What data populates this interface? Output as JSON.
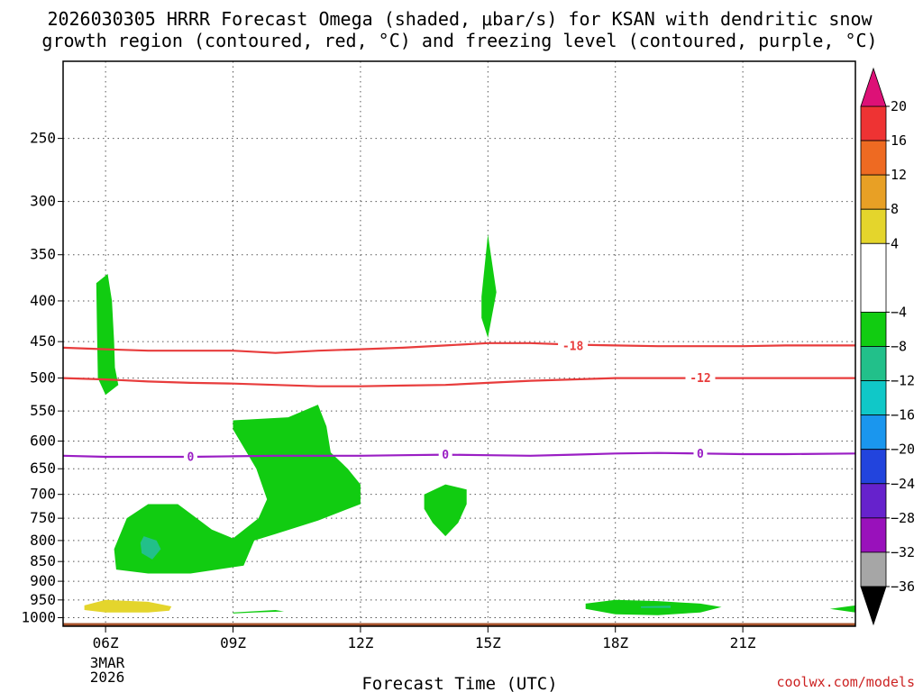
{
  "chart_data": {
    "type": "time-height contour",
    "title_line1": "2026030305 HRRR Forecast Omega (shaded, μbar/s) for KSAN with dendritic snow",
    "title_line2": "growth region (contoured, red, °C) and freezing level (contoured, purple, °C)",
    "xlabel": "Forecast Time (UTC)",
    "date_label": [
      "3MAR",
      "2026"
    ],
    "credit": "coolwx.com/models",
    "x_hours_range": [
      5.0,
      23.65
    ],
    "x_ticks": [
      {
        "hour": 6,
        "label": "06Z"
      },
      {
        "hour": 9,
        "label": "09Z"
      },
      {
        "hour": 12,
        "label": "12Z"
      },
      {
        "hour": 15,
        "label": "15Z"
      },
      {
        "hour": 18,
        "label": "18Z"
      },
      {
        "hour": 21,
        "label": "21Z"
      }
    ],
    "y_pressure_range_hPa": [
      200,
      1025
    ],
    "y_ticks": [
      "250",
      "300",
      "350",
      "400",
      "450",
      "500",
      "550",
      "600",
      "650",
      "700",
      "750",
      "800",
      "850",
      "900",
      "950",
      "1000"
    ],
    "y_ticks_values": [
      250,
      300,
      350,
      400,
      450,
      500,
      550,
      600,
      650,
      700,
      750,
      800,
      850,
      900,
      950,
      1000
    ],
    "gridlines": "dotted",
    "colorbar": {
      "labels": [
        "20",
        "16",
        "12",
        "8",
        "4",
        "−4",
        "−8",
        "−12",
        "−16",
        "−20",
        "−24",
        "−28",
        "−32",
        "−36"
      ],
      "label_values": [
        20,
        16,
        12,
        8,
        4,
        -4,
        -8,
        -12,
        -16,
        -20,
        -24,
        -28,
        -32,
        -36
      ],
      "bins": [
        {
          "range": [
            16,
            20
          ],
          "color": "#ee3333"
        },
        {
          "range": [
            12,
            16
          ],
          "color": "#ee6a22"
        },
        {
          "range": [
            8,
            12
          ],
          "color": "#e8a025"
        },
        {
          "range": [
            4,
            8
          ],
          "color": "#e4d52c"
        },
        {
          "range": [
            -4,
            4
          ],
          "color": "#ffffff"
        },
        {
          "range": [
            -8,
            -4
          ],
          "color": "#11cc11"
        },
        {
          "range": [
            -12,
            -8
          ],
          "color": "#22c08a"
        },
        {
          "range": [
            -16,
            -12
          ],
          "color": "#10c8c8"
        },
        {
          "range": [
            -20,
            -16
          ],
          "color": "#1a96ee"
        },
        {
          "range": [
            -24,
            -20
          ],
          "color": "#2244dd"
        },
        {
          "range": [
            -28,
            -24
          ],
          "color": "#6622cc"
        },
        {
          "range": [
            -32,
            -28
          ],
          "color": "#9911bb"
        },
        {
          "range": [
            -36,
            -32
          ],
          "color": "#a6a6a6"
        }
      ],
      "over_color": "#dd1177",
      "under_color": "#000000"
    },
    "contours": [
      {
        "value": "-18",
        "color": "#e83c3c",
        "label_points": [
          [
            17.0,
            456
          ]
        ],
        "points": [
          [
            5.0,
            458
          ],
          [
            6.0,
            460
          ],
          [
            7.0,
            462
          ],
          [
            8.0,
            462
          ],
          [
            9.0,
            462
          ],
          [
            10.0,
            465
          ],
          [
            11.0,
            462
          ],
          [
            12.0,
            460
          ],
          [
            13.0,
            458
          ],
          [
            14.0,
            455
          ],
          [
            15.0,
            452
          ],
          [
            16.0,
            452
          ],
          [
            17.0,
            454
          ],
          [
            18.0,
            455
          ],
          [
            19.0,
            456
          ],
          [
            20.0,
            456
          ],
          [
            21.0,
            456
          ],
          [
            22.0,
            455
          ],
          [
            23.65,
            455
          ]
        ]
      },
      {
        "value": "-12",
        "color": "#e83c3c",
        "label_points": [
          [
            20.0,
            500
          ]
        ],
        "points": [
          [
            5.0,
            500
          ],
          [
            6.0,
            502
          ],
          [
            7.0,
            505
          ],
          [
            8.0,
            507
          ],
          [
            9.0,
            508
          ],
          [
            10.0,
            510
          ],
          [
            11.0,
            512
          ],
          [
            12.0,
            512
          ],
          [
            13.0,
            511
          ],
          [
            14.0,
            510
          ],
          [
            15.0,
            507
          ],
          [
            16.0,
            504
          ],
          [
            17.0,
            502
          ],
          [
            18.0,
            500
          ],
          [
            19.0,
            500
          ],
          [
            20.0,
            500
          ],
          [
            21.0,
            500
          ],
          [
            22.0,
            500
          ],
          [
            23.65,
            500
          ]
        ]
      },
      {
        "value": "0",
        "color": "#9a1ec4",
        "label_points": [
          [
            8.0,
            628
          ],
          [
            14.0,
            624
          ],
          [
            20.0,
            622
          ]
        ],
        "points": [
          [
            5.0,
            626
          ],
          [
            6.0,
            628
          ],
          [
            7.0,
            628
          ],
          [
            8.0,
            628
          ],
          [
            9.0,
            627
          ],
          [
            10.0,
            626
          ],
          [
            11.0,
            626
          ],
          [
            12.0,
            626
          ],
          [
            13.0,
            625
          ],
          [
            14.0,
            624
          ],
          [
            15.0,
            625
          ],
          [
            16.0,
            626
          ],
          [
            17.0,
            624
          ],
          [
            18.0,
            622
          ],
          [
            19.0,
            621
          ],
          [
            20.0,
            622
          ],
          [
            21.0,
            623
          ],
          [
            22.0,
            623
          ],
          [
            23.65,
            622
          ]
        ]
      }
    ],
    "shaded_regions": [
      {
        "range": [
          -8,
          -4
        ],
        "color": "#11cc11",
        "points": [
          [
            5.78,
            380
          ],
          [
            6.05,
            370
          ],
          [
            6.15,
            400
          ],
          [
            6.2,
            450
          ],
          [
            6.22,
            485
          ],
          [
            6.3,
            510
          ],
          [
            6.0,
            525
          ],
          [
            5.82,
            500
          ],
          [
            5.8,
            440
          ]
        ]
      },
      {
        "range": [
          -8,
          -4
        ],
        "color": "#11cc11",
        "points": [
          [
            14.85,
            395
          ],
          [
            15.0,
            330
          ],
          [
            15.2,
            390
          ],
          [
            15.0,
            445
          ],
          [
            14.85,
            420
          ]
        ]
      },
      {
        "range": [
          -8,
          -4
        ],
        "color": "#11cc11",
        "points": [
          [
            9.0,
            565
          ],
          [
            10.3,
            560
          ],
          [
            11.0,
            540
          ],
          [
            11.2,
            575
          ],
          [
            11.3,
            620
          ],
          [
            11.7,
            650
          ],
          [
            12.0,
            680
          ],
          [
            12.0,
            720
          ],
          [
            11.0,
            755
          ],
          [
            10.0,
            785
          ],
          [
            9.5,
            800
          ],
          [
            9.25,
            860
          ],
          [
            8.0,
            880
          ],
          [
            7.0,
            880
          ],
          [
            6.25,
            870
          ],
          [
            6.2,
            820
          ],
          [
            6.5,
            750
          ],
          [
            7.0,
            720
          ],
          [
            7.7,
            720
          ],
          [
            8.0,
            740
          ],
          [
            8.5,
            775
          ],
          [
            9.0,
            795
          ],
          [
            9.6,
            750
          ],
          [
            9.8,
            710
          ],
          [
            9.55,
            650
          ],
          [
            9.0,
            580
          ]
        ]
      },
      {
        "range": [
          -12,
          -8
        ],
        "color": "#22c08a",
        "points": [
          [
            6.9,
            790
          ],
          [
            7.2,
            800
          ],
          [
            7.3,
            820
          ],
          [
            7.1,
            845
          ],
          [
            6.85,
            830
          ],
          [
            6.82,
            805
          ]
        ]
      },
      {
        "range": [
          -8,
          -4
        ],
        "color": "#11cc11",
        "points": [
          [
            13.5,
            700
          ],
          [
            14.0,
            680
          ],
          [
            14.5,
            690
          ],
          [
            14.5,
            720
          ],
          [
            14.3,
            760
          ],
          [
            14.0,
            790
          ],
          [
            13.7,
            760
          ],
          [
            13.5,
            730
          ]
        ]
      },
      {
        "range": [
          4,
          8
        ],
        "color": "#e4d52c",
        "points": [
          [
            5.5,
            965
          ],
          [
            6.0,
            950
          ],
          [
            7.0,
            955
          ],
          [
            7.55,
            968
          ],
          [
            7.5,
            980
          ],
          [
            7.0,
            985
          ],
          [
            6.0,
            985
          ],
          [
            5.5,
            978
          ]
        ]
      },
      {
        "range": [
          -8,
          -4
        ],
        "color": "#11cc11",
        "points": [
          [
            9.0,
            985
          ],
          [
            10.0,
            978
          ],
          [
            10.2,
            982
          ],
          [
            9.5,
            985
          ],
          [
            9.0,
            988
          ]
        ]
      },
      {
        "range": [
          -8,
          -4
        ],
        "color": "#11cc11",
        "points": [
          [
            17.3,
            960
          ],
          [
            18.0,
            950
          ],
          [
            19.0,
            953
          ],
          [
            20.0,
            960
          ],
          [
            20.5,
            970
          ],
          [
            20.0,
            985
          ],
          [
            19.0,
            993
          ],
          [
            18.0,
            990
          ],
          [
            17.3,
            975
          ]
        ]
      },
      {
        "range": [
          -12,
          -8
        ],
        "color": "#22c08a",
        "points": [
          [
            18.6,
            968
          ],
          [
            19.3,
            966
          ],
          [
            19.3,
            972
          ],
          [
            18.6,
            972
          ]
        ]
      },
      {
        "range": [
          -8,
          -4
        ],
        "color": "#11cc11",
        "points": [
          [
            23.05,
            975
          ],
          [
            23.65,
            965
          ],
          [
            23.65,
            985
          ]
        ]
      }
    ],
    "terrain_color": "#a5522a"
  }
}
